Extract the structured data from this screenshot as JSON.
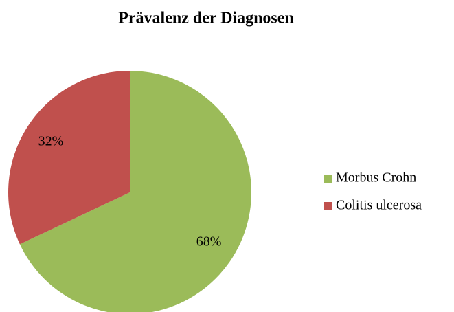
{
  "chart_data": {
    "type": "pie",
    "title": "Prävalenz der Diagnosen",
    "categories": [
      "Morbus Crohn",
      "Colitis ulcerosa"
    ],
    "values": [
      68,
      32
    ],
    "value_labels": [
      "68%",
      "32%"
    ],
    "colors": [
      "#9bbb59",
      "#c0504d"
    ],
    "legend": "right"
  }
}
